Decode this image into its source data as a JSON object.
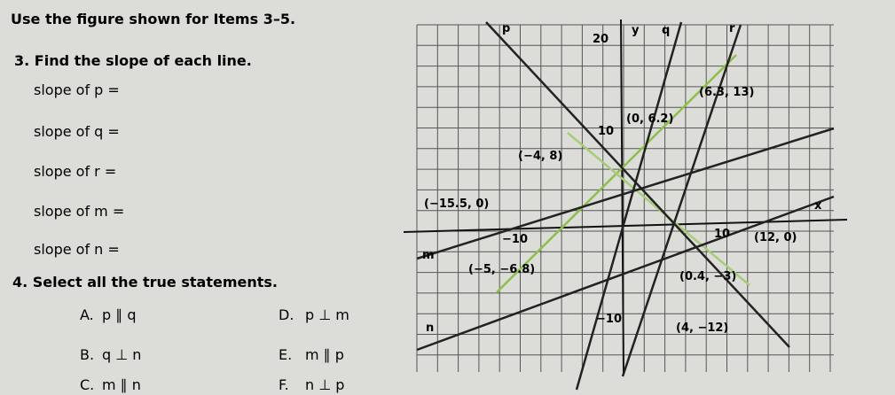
{
  "header": {
    "title": "Use the figure shown for Items 3–5."
  },
  "item3": {
    "prompt": "3. Find the slope of each line.",
    "rows": [
      "slope of p =",
      "slope of q =",
      "slope of r =",
      "slope of m =",
      "slope of n ="
    ]
  },
  "item4": {
    "prompt": "4. Select all the true statements.",
    "options": [
      {
        "letter": "A.",
        "text": "p ∥ q"
      },
      {
        "letter": "D.",
        "text": "p ⊥ m"
      },
      {
        "letter": "B.",
        "text": "q ⊥ n"
      },
      {
        "letter": "E.",
        "text": "m ∥ p"
      },
      {
        "letter": "C.",
        "text": "m ∥ n"
      },
      {
        "letter": "F.",
        "text": "n ⊥ p"
      }
    ]
  },
  "graph": {
    "axis_names": [
      "x",
      "y"
    ],
    "axis_labels": [
      "20",
      "10",
      "−10",
      "10",
      "−10"
    ],
    "line_labels": [
      "p",
      "q",
      "r",
      "m",
      "n"
    ],
    "points": [
      "(6.3, 13)",
      "(0, 6.2)",
      "(−4, 8)",
      "(−15.5, 0)",
      "(12, 0)",
      "(−5, −6.8)",
      "(0.4, −3)",
      "(4, −12)"
    ]
  }
}
